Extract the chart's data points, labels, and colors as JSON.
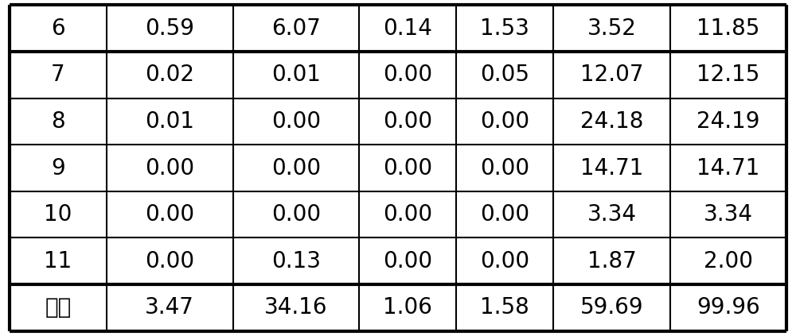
{
  "rows": [
    [
      "6",
      "0.59",
      "6.07",
      "0.14",
      "1.53",
      "3.52",
      "11.85"
    ],
    [
      "7",
      "0.02",
      "0.01",
      "0.00",
      "0.05",
      "12.07",
      "12.15"
    ],
    [
      "8",
      "0.01",
      "0.00",
      "0.00",
      "0.00",
      "24.18",
      "24.19"
    ],
    [
      "9",
      "0.00",
      "0.00",
      "0.00",
      "0.00",
      "14.71",
      "14.71"
    ],
    [
      "10",
      "0.00",
      "0.00",
      "0.00",
      "0.00",
      "3.34",
      "3.34"
    ],
    [
      "11",
      "0.00",
      "0.13",
      "0.00",
      "0.00",
      "1.87",
      "2.00"
    ],
    [
      "合计",
      "3.47",
      "34.16",
      "1.06",
      "1.58",
      "59.69",
      "99.96"
    ]
  ],
  "col_widths_rel": [
    1.0,
    1.3,
    1.3,
    1.0,
    1.0,
    1.2,
    1.2
  ],
  "background_color": "#ffffff",
  "text_color": "#000000",
  "line_color": "#000000",
  "font_size": 20,
  "thick_lines_after_rows": [
    0,
    5
  ],
  "outer_lw": 3.0,
  "inner_lw": 1.5,
  "thick_inner_lw": 3.0
}
